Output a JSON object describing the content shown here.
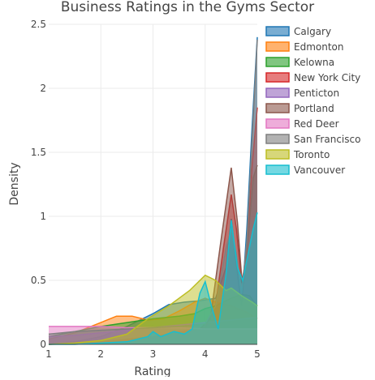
{
  "chart_data": {
    "type": "area",
    "title": "Business Ratings in the Gyms Sector",
    "xlabel": "Rating",
    "ylabel": "Density",
    "xlim": [
      1,
      5
    ],
    "ylim": [
      0,
      2.5
    ],
    "x_ticks": [
      1,
      2,
      3,
      4,
      5
    ],
    "x_tick_labels": [
      "1",
      "2",
      "3",
      "4",
      "5"
    ],
    "y_ticks": [
      0,
      0.5,
      1,
      1.5,
      2,
      2.5
    ],
    "y_tick_labels": [
      "0",
      "0.5",
      "1",
      "1.5",
      "2",
      "2.5"
    ],
    "grid": true,
    "legend_position": "right",
    "series": [
      {
        "name": "Calgary",
        "color": "#1f77b4",
        "points": [
          [
            1,
            0.0
          ],
          [
            1.5,
            0.02
          ],
          [
            2,
            0.06
          ],
          [
            2.5,
            0.14
          ],
          [
            3,
            0.24
          ],
          [
            3.3,
            0.31
          ],
          [
            3.6,
            0.33
          ],
          [
            3.9,
            0.34
          ],
          [
            4.2,
            0.36
          ],
          [
            4.4,
            0.6
          ],
          [
            4.5,
            0.98
          ],
          [
            4.6,
            0.62
          ],
          [
            4.7,
            0.3
          ],
          [
            4.8,
            0.9
          ],
          [
            4.9,
            1.7
          ],
          [
            5,
            2.4
          ]
        ]
      },
      {
        "name": "Edmonton",
        "color": "#ff7f0e",
        "points": [
          [
            1,
            0.04
          ],
          [
            1.5,
            0.09
          ],
          [
            2,
            0.17
          ],
          [
            2.3,
            0.22
          ],
          [
            2.6,
            0.22
          ],
          [
            2.9,
            0.19
          ],
          [
            3.2,
            0.2
          ],
          [
            3.5,
            0.26
          ],
          [
            3.8,
            0.33
          ],
          [
            4,
            0.36
          ],
          [
            4.2,
            0.33
          ],
          [
            4.5,
            0.3
          ],
          [
            4.8,
            0.25
          ],
          [
            5,
            0.2
          ]
        ]
      },
      {
        "name": "Kelowna",
        "color": "#2ca02c",
        "points": [
          [
            1,
            0.06
          ],
          [
            1.5,
            0.1
          ],
          [
            2,
            0.14
          ],
          [
            2.5,
            0.17
          ],
          [
            3,
            0.2
          ],
          [
            3.5,
            0.22
          ],
          [
            3.8,
            0.24
          ],
          [
            4,
            0.28
          ],
          [
            4.2,
            0.3
          ],
          [
            4.5,
            0.36
          ],
          [
            4.7,
            0.39
          ],
          [
            4.85,
            0.38
          ],
          [
            5,
            0.3
          ]
        ]
      },
      {
        "name": "New York City",
        "color": "#d62728",
        "points": [
          [
            1,
            0.0
          ],
          [
            2,
            0.01
          ],
          [
            3,
            0.05
          ],
          [
            3.5,
            0.1
          ],
          [
            3.8,
            0.12
          ],
          [
            4,
            0.13
          ],
          [
            4.2,
            0.3
          ],
          [
            4.35,
            0.75
          ],
          [
            4.5,
            1.17
          ],
          [
            4.6,
            0.9
          ],
          [
            4.7,
            0.48
          ],
          [
            4.8,
            0.7
          ],
          [
            4.9,
            1.4
          ],
          [
            5,
            1.85
          ]
        ]
      },
      {
        "name": "Penticton",
        "color": "#9467bd",
        "points": [
          [
            1,
            0.06
          ],
          [
            1.5,
            0.07
          ],
          [
            2,
            0.09
          ],
          [
            2.5,
            0.11
          ],
          [
            3,
            0.13
          ],
          [
            3.5,
            0.15
          ],
          [
            4,
            0.17
          ],
          [
            4.5,
            0.19
          ],
          [
            5,
            0.21
          ]
        ]
      },
      {
        "name": "Portland",
        "color": "#8c564b",
        "points": [
          [
            1,
            0.0
          ],
          [
            2,
            0.02
          ],
          [
            3,
            0.06
          ],
          [
            3.5,
            0.09
          ],
          [
            3.9,
            0.12
          ],
          [
            4.1,
            0.2
          ],
          [
            4.3,
            0.8
          ],
          [
            4.5,
            1.38
          ],
          [
            4.62,
            0.95
          ],
          [
            4.72,
            0.42
          ],
          [
            4.82,
            0.8
          ],
          [
            4.92,
            1.3
          ],
          [
            5,
            1.4
          ]
        ]
      },
      {
        "name": "Red Deer",
        "color": "#e377c2",
        "points": [
          [
            1,
            0.14
          ],
          [
            1.5,
            0.14
          ],
          [
            2,
            0.14
          ],
          [
            2.5,
            0.13
          ],
          [
            3,
            0.13
          ],
          [
            3.5,
            0.13
          ],
          [
            4,
            0.12
          ],
          [
            4.5,
            0.12
          ],
          [
            5,
            0.12
          ]
        ]
      },
      {
        "name": "San Francisco",
        "color": "#7f7f7f",
        "points": [
          [
            1,
            0.08
          ],
          [
            1.5,
            0.1
          ],
          [
            2,
            0.11
          ],
          [
            2.5,
            0.12
          ],
          [
            3,
            0.13
          ],
          [
            3.5,
            0.14
          ],
          [
            4,
            0.16
          ],
          [
            4.2,
            0.3
          ],
          [
            4.4,
            0.75
          ],
          [
            4.5,
            0.9
          ],
          [
            4.6,
            0.7
          ],
          [
            4.7,
            0.4
          ],
          [
            4.8,
            0.8
          ],
          [
            4.9,
            1.6
          ],
          [
            5,
            2.38
          ]
        ]
      },
      {
        "name": "Toronto",
        "color": "#bcbd22",
        "points": [
          [
            1,
            0.0
          ],
          [
            1.5,
            0.01
          ],
          [
            2,
            0.03
          ],
          [
            2.5,
            0.08
          ],
          [
            2.9,
            0.2
          ],
          [
            3.3,
            0.3
          ],
          [
            3.7,
            0.42
          ],
          [
            4,
            0.54
          ],
          [
            4.2,
            0.5
          ],
          [
            4.4,
            0.42
          ],
          [
            4.5,
            0.44
          ],
          [
            4.7,
            0.38
          ],
          [
            4.9,
            0.33
          ],
          [
            5,
            0.3
          ]
        ]
      },
      {
        "name": "Vancouver",
        "color": "#17becf",
        "points": [
          [
            1,
            0.0
          ],
          [
            1.5,
            0.0
          ],
          [
            2,
            0.01
          ],
          [
            2.5,
            0.02
          ],
          [
            2.9,
            0.06
          ],
          [
            3,
            0.1
          ],
          [
            3.15,
            0.06
          ],
          [
            3.4,
            0.1
          ],
          [
            3.6,
            0.08
          ],
          [
            3.75,
            0.12
          ],
          [
            3.9,
            0.4
          ],
          [
            4,
            0.49
          ],
          [
            4.12,
            0.3
          ],
          [
            4.25,
            0.12
          ],
          [
            4.4,
            0.55
          ],
          [
            4.5,
            0.97
          ],
          [
            4.62,
            0.6
          ],
          [
            4.72,
            0.5
          ],
          [
            4.82,
            0.7
          ],
          [
            4.92,
            0.9
          ],
          [
            5,
            1.03
          ]
        ]
      }
    ]
  }
}
